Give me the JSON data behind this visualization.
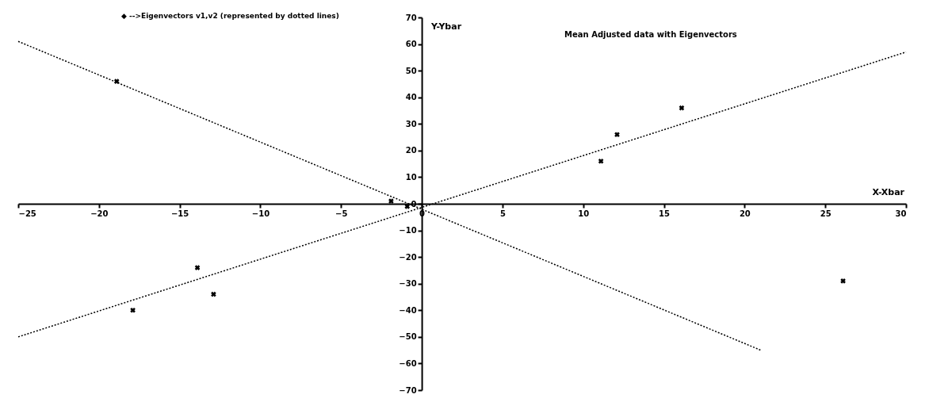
{
  "chart_data": {
    "type": "scatter",
    "title": "Mean Adjusted data with Eigenvectors",
    "xlabel": "X-Xbar",
    "ylabel": "Y-Ybar",
    "annotations": [
      "◆ -->Eigenvectors v1,v2 (represented by dotted lines)"
    ],
    "xlim": [
      -25,
      30
    ],
    "xticks": [
      -25,
      -20,
      -15,
      -10,
      -5,
      0,
      5,
      10,
      15,
      20,
      25,
      30
    ],
    "ylim": [
      -70,
      70
    ],
    "yticks": [
      -70,
      -60,
      -50,
      -40,
      -30,
      -20,
      -10,
      0,
      10,
      20,
      30,
      40,
      50,
      60,
      70
    ],
    "grid": false,
    "series": [
      {
        "color": "#000000",
        "marker": "cross",
        "x": [
          -18.9,
          -17.9,
          -13.9,
          -12.9,
          -1.9,
          -0.9,
          11.1,
          12.1,
          16.1,
          26.1
        ],
        "values": [
          46,
          -40,
          -24,
          -34,
          1,
          -1,
          16,
          26,
          36,
          -29
        ]
      },
      {
        "type": "line",
        "color": "#000000",
        "line_style": "dotted",
        "x": [
          -25,
          30
        ],
        "values": [
          -50,
          57
        ]
      },
      {
        "type": "line",
        "color": "#000000",
        "line_style": "dotted",
        "x": [
          -25,
          21
        ],
        "values": [
          61,
          -55
        ]
      }
    ]
  }
}
